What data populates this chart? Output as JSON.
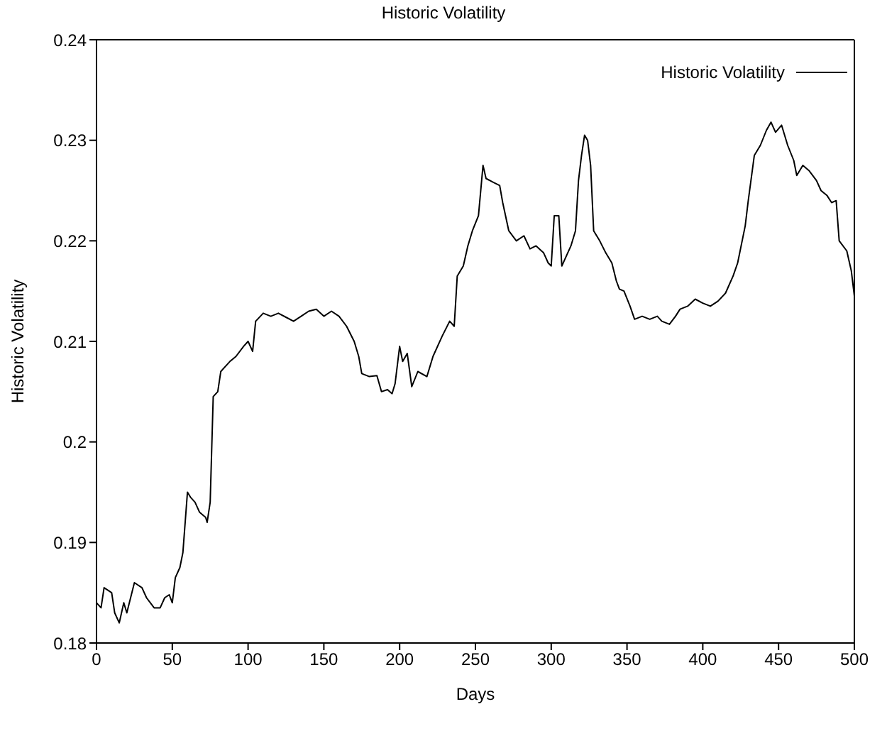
{
  "chart_data": {
    "type": "line",
    "title": "Historic Volatility",
    "xlabel": "Days",
    "ylabel": "Historic Volatility",
    "xlim": [
      0,
      500
    ],
    "xticks": [
      0,
      50,
      100,
      150,
      200,
      250,
      300,
      350,
      400,
      450,
      500
    ],
    "ylim": [
      0.18,
      0.24
    ],
    "yticks": [
      0.18,
      0.19,
      0.2,
      0.21,
      0.22,
      0.23,
      0.24
    ],
    "grid": false,
    "legend": "top right",
    "marker": "none",
    "line_style": "solid",
    "series": [
      {
        "name": "Historic Volatility",
        "color": "#000000",
        "x": [
          0,
          3,
          5,
          10,
          12,
          15,
          18,
          20,
          25,
          30,
          33,
          38,
          42,
          45,
          48,
          50,
          52,
          55,
          57,
          60,
          62,
          65,
          68,
          72,
          73,
          75,
          77,
          80,
          82,
          85,
          88,
          92,
          97,
          100,
          103,
          105,
          110,
          115,
          120,
          125,
          130,
          135,
          140,
          145,
          150,
          155,
          160,
          165,
          170,
          173,
          175,
          180,
          185,
          188,
          192,
          195,
          197,
          200,
          202,
          205,
          208,
          212,
          218,
          222,
          228,
          233,
          236,
          238,
          242,
          245,
          248,
          252,
          255,
          257,
          262,
          266,
          268,
          272,
          277,
          282,
          286,
          290,
          295,
          298,
          300,
          302,
          305,
          307,
          310,
          313,
          316,
          318,
          320,
          322,
          324,
          326,
          328,
          332,
          336,
          340,
          343,
          345,
          348,
          352,
          355,
          360,
          365,
          370,
          373,
          378,
          382,
          385,
          390,
          395,
          400,
          405,
          410,
          415,
          420,
          423,
          428,
          430,
          434,
          438,
          442,
          445,
          448,
          452,
          456,
          460,
          462,
          466,
          470,
          475,
          478,
          482,
          485,
          488,
          490,
          495,
          498,
          500
        ],
        "values": [
          0.184,
          0.1835,
          0.1855,
          0.185,
          0.183,
          0.182,
          0.184,
          0.183,
          0.186,
          0.1855,
          0.1845,
          0.1835,
          0.1835,
          0.1845,
          0.1848,
          0.184,
          0.1865,
          0.1875,
          0.189,
          0.195,
          0.1945,
          0.194,
          0.193,
          0.1925,
          0.192,
          0.194,
          0.2045,
          0.205,
          0.207,
          0.2075,
          0.208,
          0.2085,
          0.2095,
          0.21,
          0.209,
          0.212,
          0.2128,
          0.2125,
          0.2128,
          0.2124,
          0.212,
          0.2125,
          0.213,
          0.2132,
          0.2125,
          0.213,
          0.2125,
          0.2115,
          0.21,
          0.2085,
          0.2068,
          0.2065,
          0.2066,
          0.205,
          0.2052,
          0.2048,
          0.2058,
          0.2095,
          0.208,
          0.2088,
          0.2055,
          0.207,
          0.2065,
          0.2085,
          0.2105,
          0.212,
          0.2115,
          0.2165,
          0.2175,
          0.2195,
          0.221,
          0.2225,
          0.2275,
          0.2262,
          0.2258,
          0.2255,
          0.2238,
          0.221,
          0.22,
          0.2205,
          0.2192,
          0.2195,
          0.2188,
          0.2178,
          0.2175,
          0.2225,
          0.2225,
          0.2175,
          0.2185,
          0.2195,
          0.221,
          0.226,
          0.2285,
          0.2305,
          0.23,
          0.2275,
          0.221,
          0.22,
          0.2188,
          0.2178,
          0.216,
          0.2152,
          0.215,
          0.2135,
          0.2122,
          0.2125,
          0.2122,
          0.2125,
          0.212,
          0.2117,
          0.2125,
          0.2132,
          0.2135,
          0.2142,
          0.2138,
          0.2135,
          0.214,
          0.2148,
          0.2165,
          0.2178,
          0.2215,
          0.224,
          0.2285,
          0.2295,
          0.231,
          0.2318,
          0.2308,
          0.2315,
          0.2295,
          0.228,
          0.2265,
          0.2275,
          0.227,
          0.226,
          0.225,
          0.2245,
          0.2238,
          0.224,
          0.22,
          0.219,
          0.217,
          0.2145
        ]
      }
    ]
  }
}
